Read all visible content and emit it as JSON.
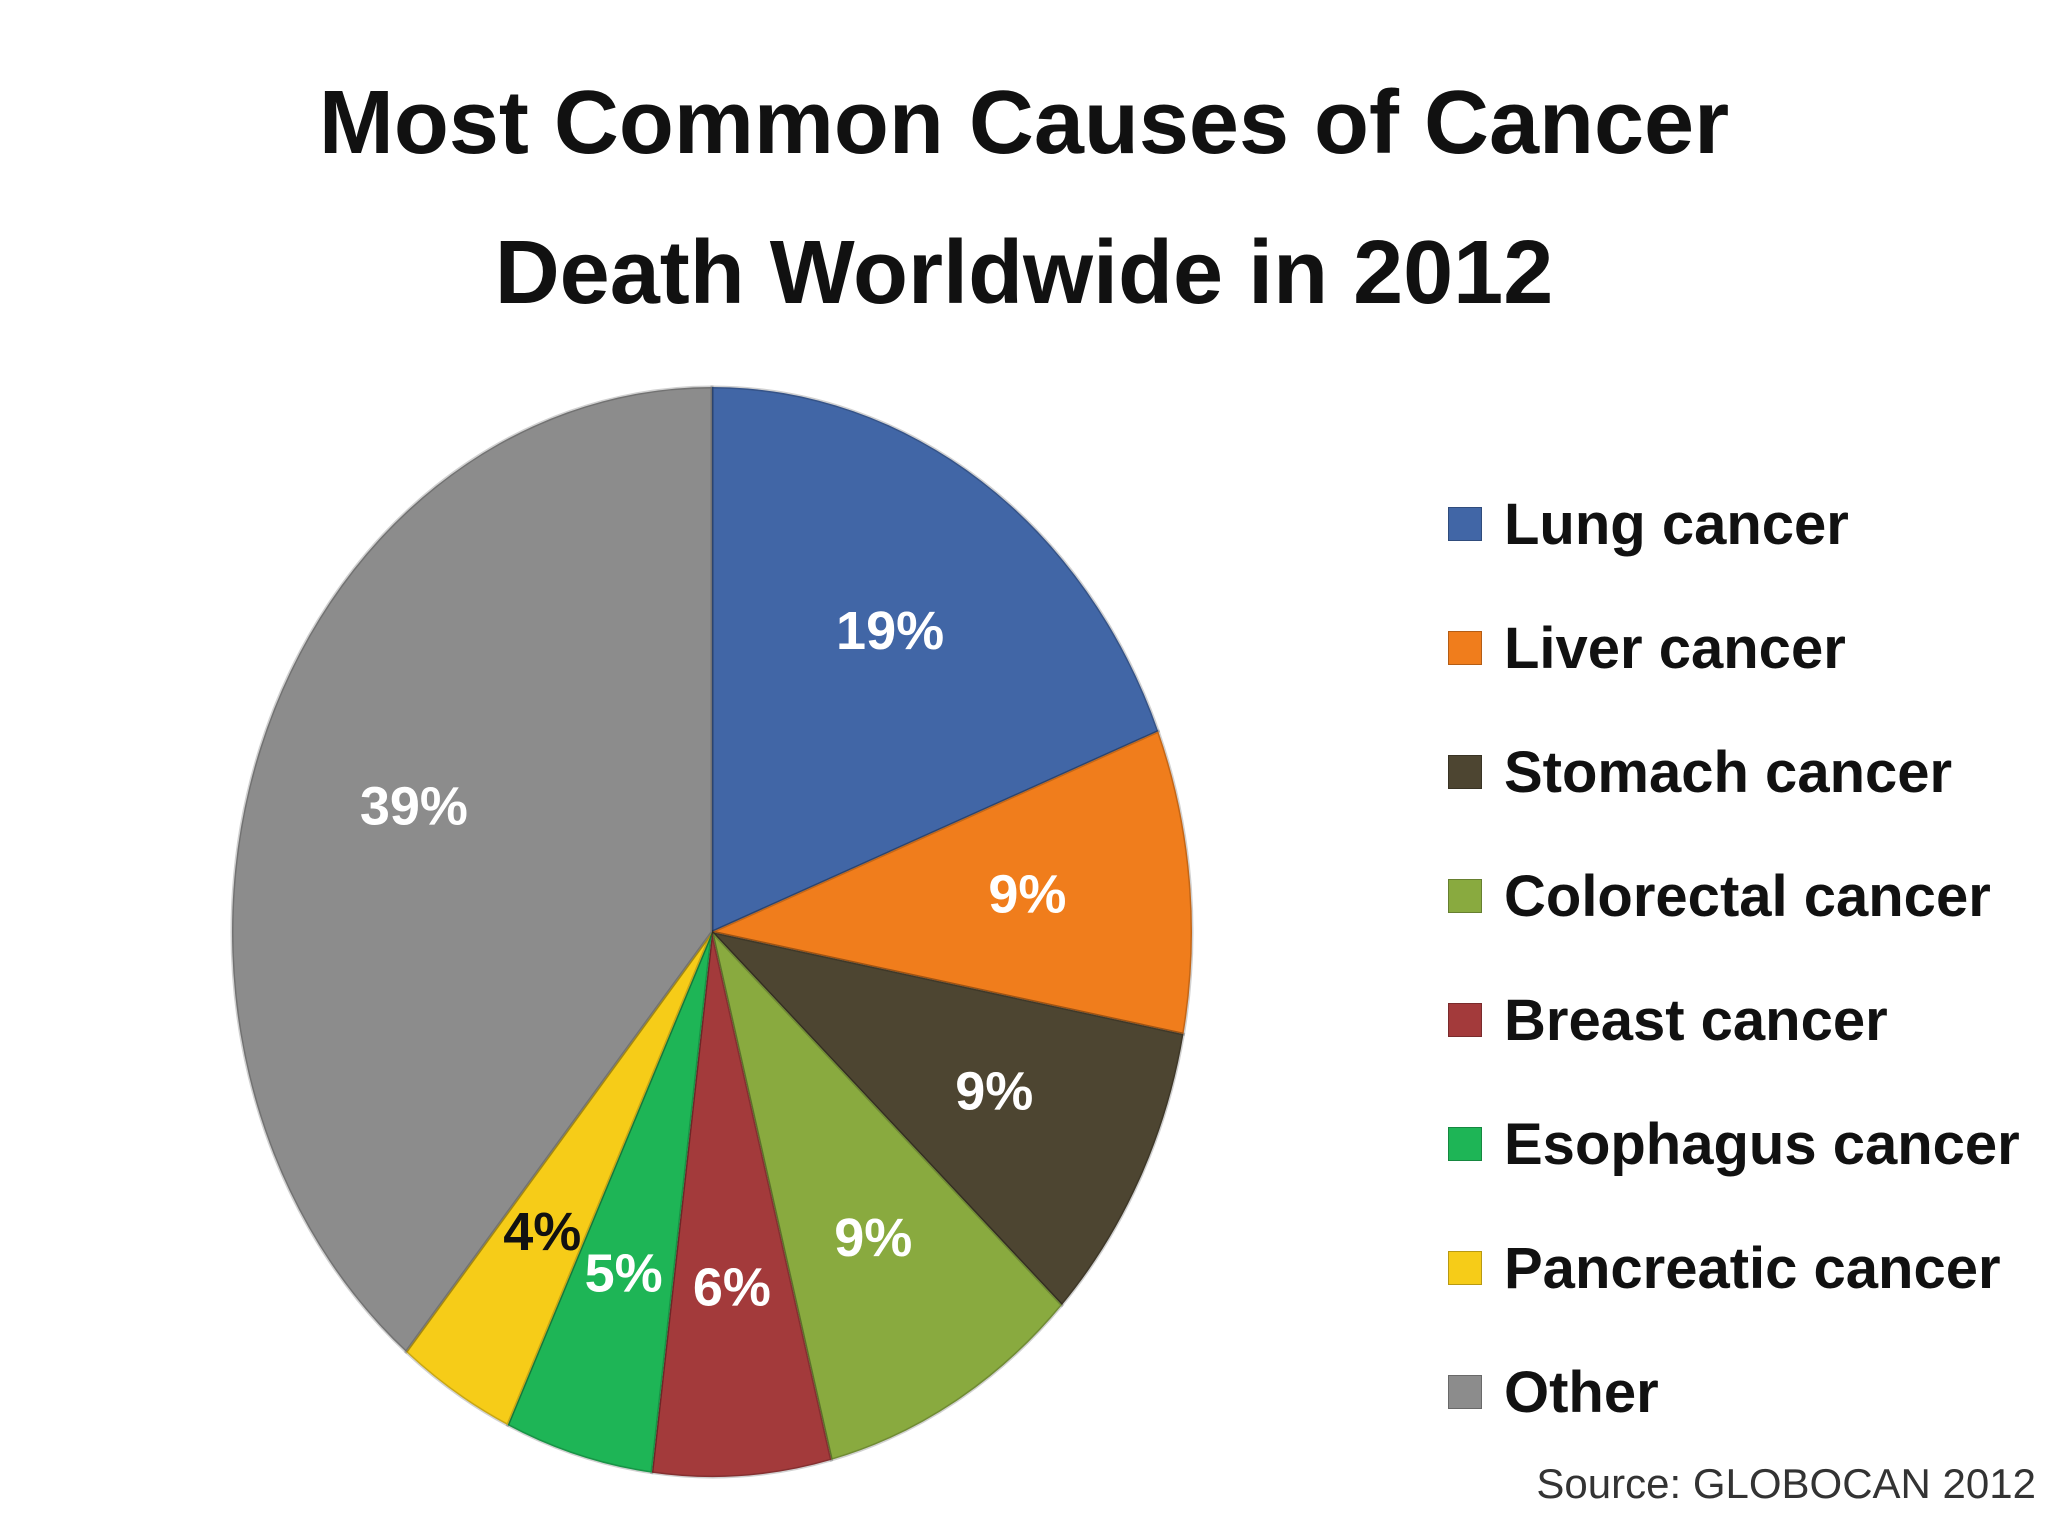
{
  "chart_data": {
    "type": "pie",
    "title": "Most Common Causes of Cancer Death Worldwide in 2012",
    "title_lines": [
      "Most Common Causes of Cancer",
      "Death Worldwide in 2012"
    ],
    "categories": [
      "Lung cancer",
      "Liver cancer",
      "Stomach cancer",
      "Colorectal cancer",
      "Breast cancer",
      "Esophagus cancer",
      "Pancreatic cancer",
      "Other"
    ],
    "values": [
      19,
      9,
      9,
      9,
      6,
      5,
      4,
      39
    ],
    "labels": [
      "19%",
      "9%",
      "9%",
      "9%",
      "6%",
      "5%",
      "4%",
      "39%"
    ],
    "colors": [
      "#4166a6",
      "#f07d1c",
      "#4d4531",
      "#89aa3f",
      "#a33a3b",
      "#1eb556",
      "#f6cc18",
      "#8c8c8c"
    ],
    "label_colors": [
      "#ffffff",
      "#ffffff",
      "#ffffff",
      "#ffffff",
      "#ffffff",
      "#ffffff",
      "#111111",
      "#ffffff"
    ],
    "legend_position": "right",
    "source": "Source: GLOBOCAN 2012"
  }
}
